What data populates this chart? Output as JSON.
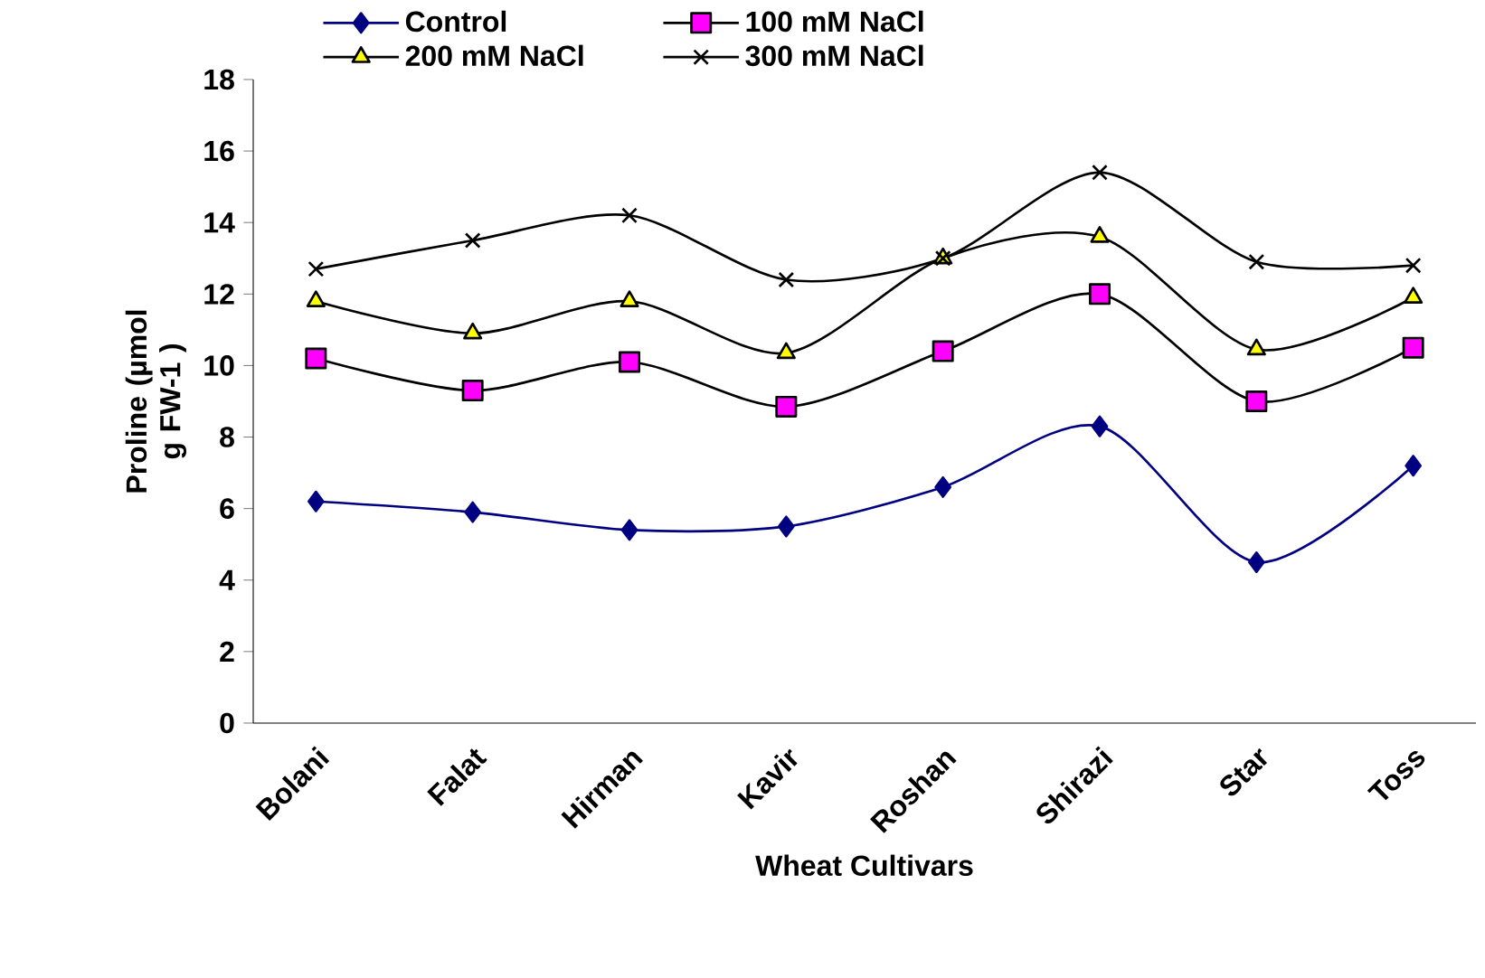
{
  "chart_data": {
    "type": "line",
    "xlabel": "Wheat Cultivars",
    "ylabel": "Proline (µmol g FW-1 )",
    "categories": [
      "Bolani",
      "Falat",
      "Hirman",
      "Kavir",
      "Roshan",
      "Shirazi",
      "Star",
      "Toss"
    ],
    "series": [
      {
        "name": "Control",
        "color": "#000080",
        "marker": "diamond",
        "values": [
          6.2,
          5.9,
          5.4,
          5.5,
          6.6,
          8.3,
          4.5,
          7.2
        ]
      },
      {
        "name": "100 mM NaCl",
        "color": "#ff00ff",
        "marker": "square",
        "values": [
          10.2,
          9.3,
          10.1,
          8.85,
          10.4,
          12.0,
          9.0,
          10.5
        ]
      },
      {
        "name": "200 mM NaCl",
        "color": "#ffff00",
        "marker": "triangle",
        "values": [
          11.8,
          10.9,
          11.8,
          10.35,
          13.0,
          13.6,
          10.45,
          11.9
        ]
      },
      {
        "name": "300 mM NaCl",
        "color": "#000000",
        "marker": "cross",
        "values": [
          12.7,
          13.5,
          14.2,
          12.4,
          13.0,
          15.4,
          12.9,
          12.8
        ]
      }
    ],
    "ylim": [
      0,
      18
    ],
    "yticks": [
      0,
      2,
      4,
      6,
      8,
      10,
      12,
      14,
      16,
      18
    ],
    "legend": "top"
  }
}
